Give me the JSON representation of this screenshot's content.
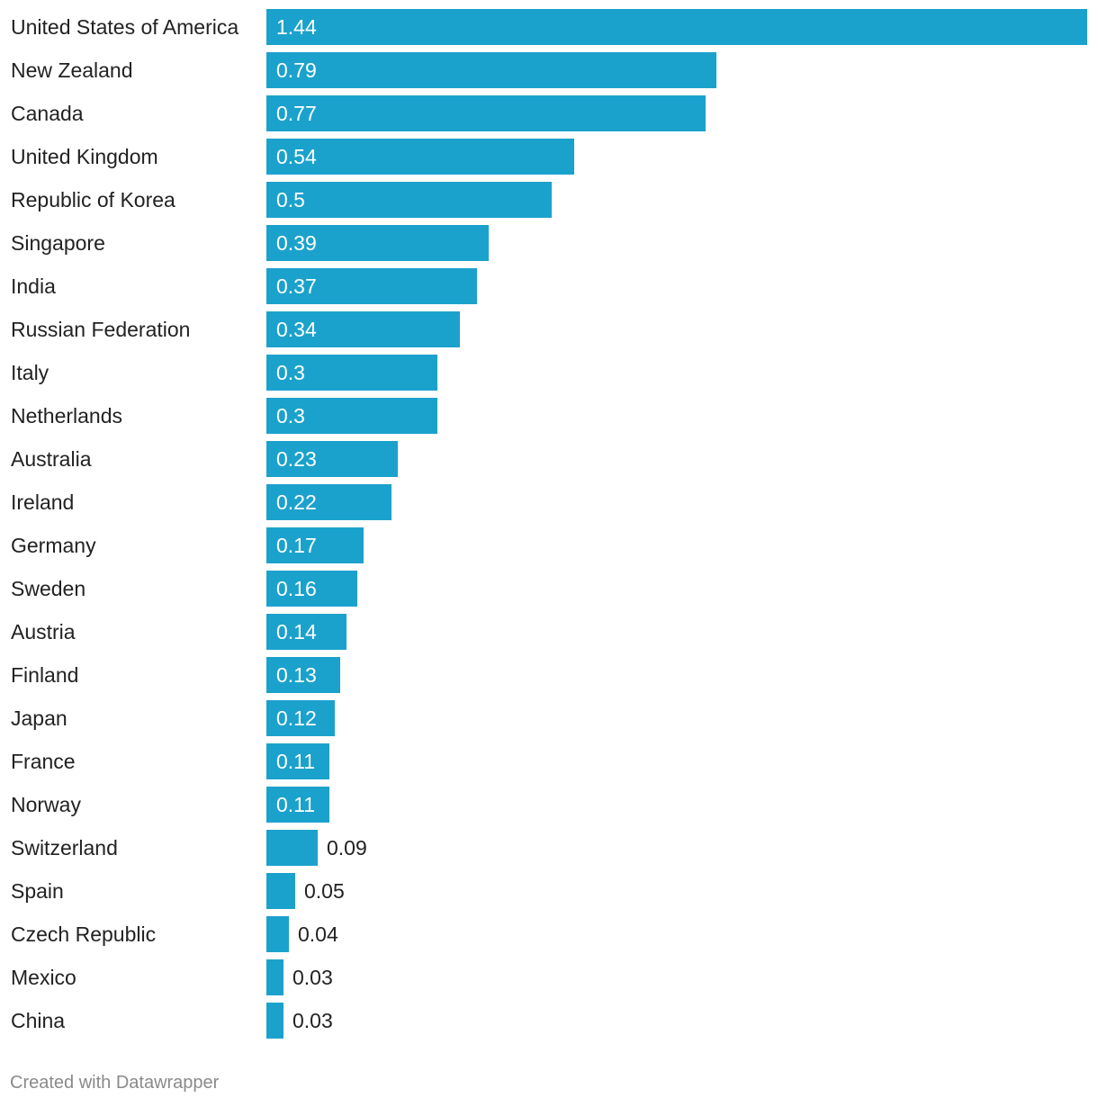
{
  "chart_data": {
    "type": "bar",
    "orientation": "horizontal",
    "title": "",
    "xlabel": "",
    "ylabel": "",
    "categories": [
      "United States of America",
      "New Zealand",
      "Canada",
      "United Kingdom",
      "Republic of Korea",
      "Singapore",
      "India",
      "Russian Federation",
      "Italy",
      "Netherlands",
      "Australia",
      "Ireland",
      "Germany",
      "Sweden",
      "Austria",
      "Finland",
      "Japan",
      "France",
      "Norway",
      "Switzerland",
      "Spain",
      "Czech Republic",
      "Mexico",
      "China"
    ],
    "values": [
      1.44,
      0.79,
      0.77,
      0.54,
      0.5,
      0.39,
      0.37,
      0.34,
      0.3,
      0.3,
      0.23,
      0.22,
      0.17,
      0.16,
      0.14,
      0.13,
      0.12,
      0.11,
      0.11,
      0.09,
      0.05,
      0.04,
      0.03,
      0.03
    ],
    "value_labels": [
      "1.44",
      "0.79",
      "0.77",
      "0.54",
      "0.5",
      "0.39",
      "0.37",
      "0.34",
      "0.3",
      "0.3",
      "0.23",
      "0.22",
      "0.17",
      "0.16",
      "0.14",
      "0.13",
      "0.12",
      "0.11",
      "0.11",
      "0.09",
      "0.05",
      "0.04",
      "0.03",
      "0.03"
    ],
    "xlim": [
      0,
      1.44
    ],
    "grid": false,
    "legend": "none",
    "bar_color": "#1ba2cc"
  },
  "footer": {
    "credit": "Created with Datawrapper"
  }
}
